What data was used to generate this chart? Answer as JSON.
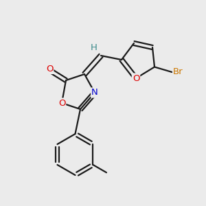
{
  "background_color": "#ebebeb",
  "bond_color": "#1a1a1a",
  "atom_colors": {
    "O": "#dd0000",
    "N": "#0000cc",
    "Br": "#cc7700",
    "H": "#3a8a8a",
    "C": "#1a1a1a"
  },
  "figsize": [
    3.0,
    3.0
  ],
  "dpi": 100
}
